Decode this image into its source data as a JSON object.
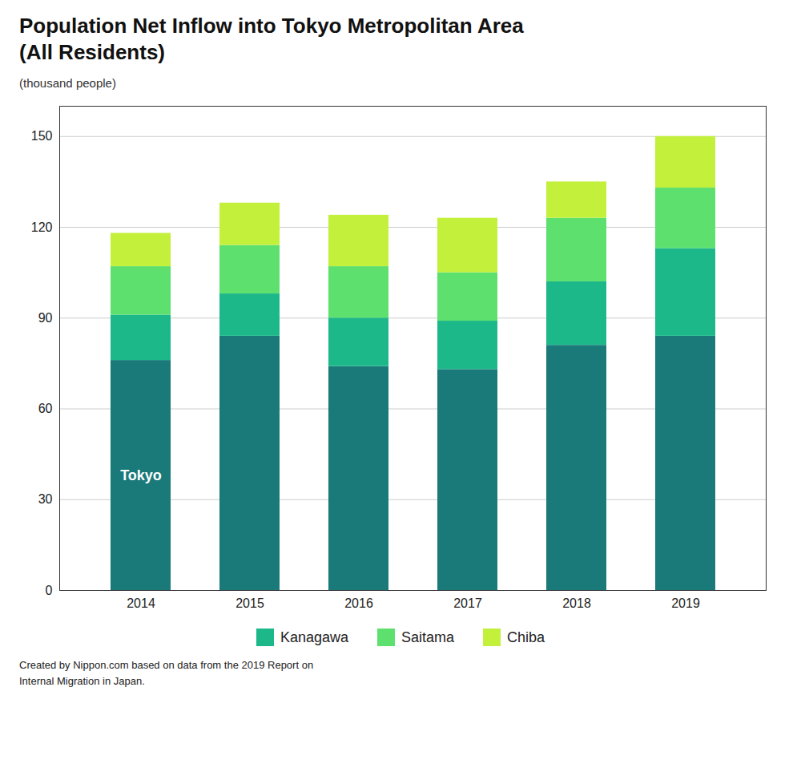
{
  "chart_data": {
    "type": "bar",
    "title": "Population Net Inflow into Tokyo Metropolitan Area",
    "subtitle": "(All Residents)",
    "ylabel": "(thousand people)",
    "caption": "Created by Nippon.com based on data from the 2019 Report on\nInternal Migration in Japan.",
    "categories": [
      "2014",
      "2015",
      "2016",
      "2017",
      "2018",
      "2019"
    ],
    "series": [
      {
        "name": "Tokyo",
        "color": "#1a7a7a",
        "values": [
          76,
          84,
          74,
          73,
          81,
          84
        ]
      },
      {
        "name": "Kanagawa",
        "color": "#1db88a",
        "values": [
          15,
          14,
          16,
          16,
          21,
          29
        ]
      },
      {
        "name": "Saitama",
        "color": "#5de06e",
        "values": [
          16,
          16,
          17,
          16,
          21,
          20
        ]
      },
      {
        "name": "Chiba",
        "color": "#c3f03a",
        "values": [
          11,
          14,
          17,
          18,
          12,
          17
        ]
      }
    ],
    "stacked": true,
    "ylim": [
      0,
      160
    ],
    "yticks": [
      0,
      30,
      60,
      90,
      120,
      150
    ],
    "grid": true,
    "legend": "bottom"
  }
}
